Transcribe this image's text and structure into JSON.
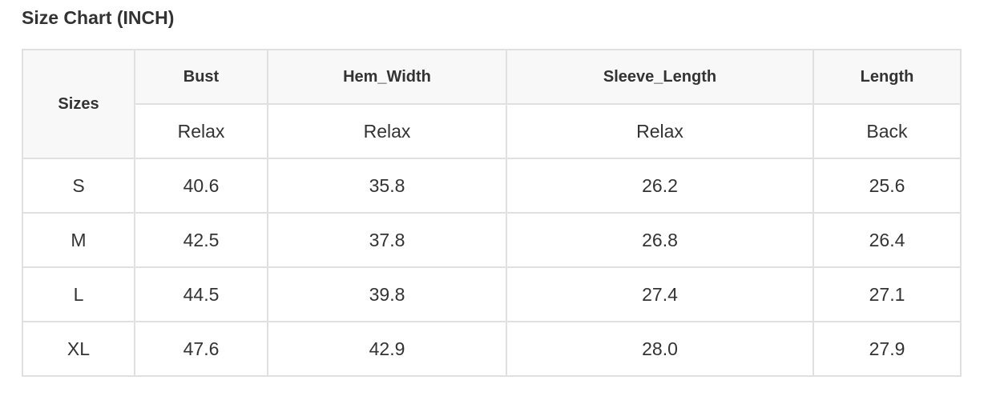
{
  "title": "Size Chart (INCH)",
  "table": {
    "sizes_header": "Sizes",
    "columns": [
      {
        "name": "Bust",
        "sub": "Relax"
      },
      {
        "name": "Hem_Width",
        "sub": "Relax"
      },
      {
        "name": "Sleeve_Length",
        "sub": "Relax"
      },
      {
        "name": "Length",
        "sub": "Back"
      }
    ],
    "rows": [
      [
        "S",
        "40.6",
        "35.8",
        "26.2",
        "25.6"
      ],
      [
        "M",
        "42.5",
        "37.8",
        "26.8",
        "26.4"
      ],
      [
        "L",
        "44.5",
        "39.8",
        "27.4",
        "27.1"
      ],
      [
        "XL",
        "47.6",
        "42.9",
        "28.0",
        "27.9"
      ]
    ]
  }
}
